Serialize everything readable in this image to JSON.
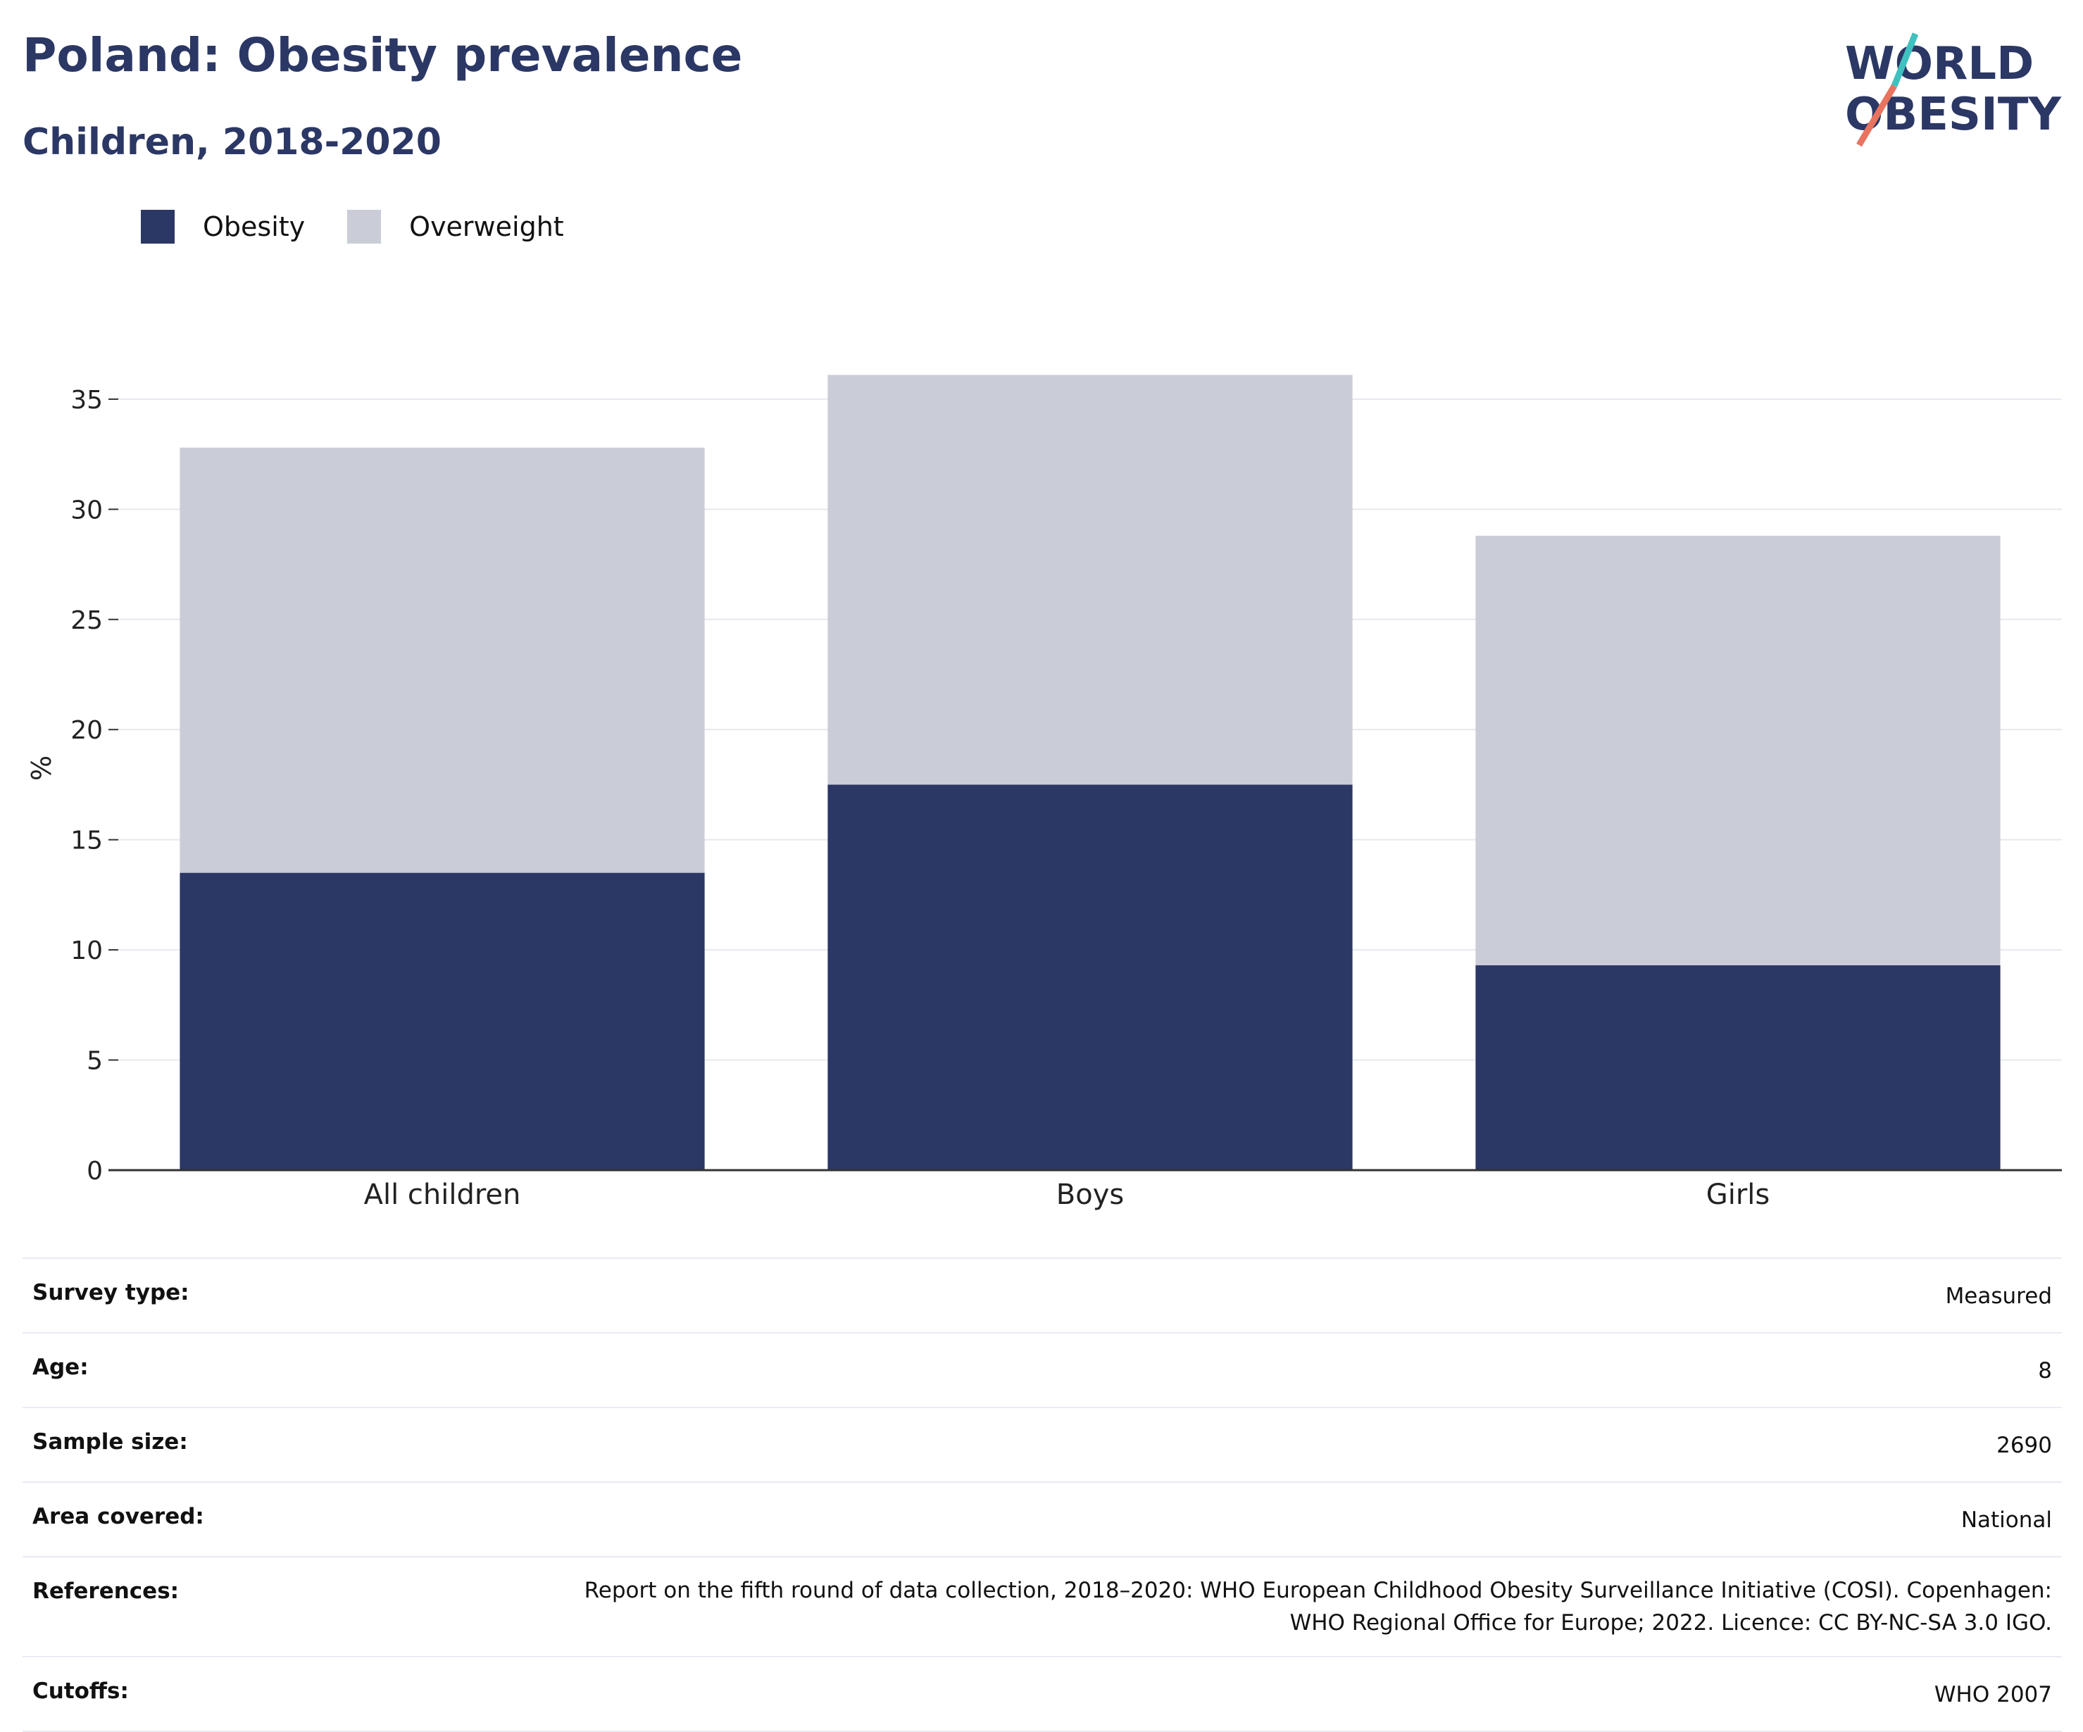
{
  "header": {
    "title": "Poland: Obesity prevalence",
    "subtitle": "Children, 2018-2020"
  },
  "logo": {
    "line1": "WORLD",
    "line2": "OBESITY",
    "accent_teal": "#3fc1c0",
    "accent_coral": "#e8735f"
  },
  "colors": {
    "obesity": "#2b3764",
    "overweight": "#cacdd8",
    "grid": "#e6e8ee",
    "axis": "#333333"
  },
  "chart_data": {
    "type": "bar",
    "stacked": true,
    "categories": [
      "All children",
      "Boys",
      "Girls"
    ],
    "series": [
      {
        "name": "Obesity",
        "values": [
          13.5,
          17.5,
          9.3
        ],
        "color": "#2b3764"
      },
      {
        "name": "Overweight",
        "values": [
          19.3,
          18.6,
          19.5
        ],
        "color": "#cacdd8"
      }
    ],
    "ylabel": "%",
    "ylim": [
      0,
      36.5
    ],
    "yticks": [
      0,
      5,
      10,
      15,
      20,
      25,
      30,
      35
    ],
    "grid": true,
    "legend_position": "top-left"
  },
  "meta": {
    "survey_type": {
      "label": "Survey type:",
      "value": "Measured"
    },
    "age": {
      "label": "Age:",
      "value": "8"
    },
    "sample_size": {
      "label": "Sample size:",
      "value": "2690"
    },
    "area_covered": {
      "label": "Area covered:",
      "value": "National"
    },
    "references": {
      "label": "References:",
      "value_line1": "Report on the fifth round of data collection, 2018–2020: WHO European Childhood Obesity Surveillance Initiative (COSI). Copenhagen:",
      "value_line2": "WHO Regional Office for Europe; 2022. Licence: CC BY-NC-SA 3.0 IGO."
    },
    "cutoffs": {
      "label": "Cutoffs:",
      "value": "WHO 2007"
    }
  }
}
